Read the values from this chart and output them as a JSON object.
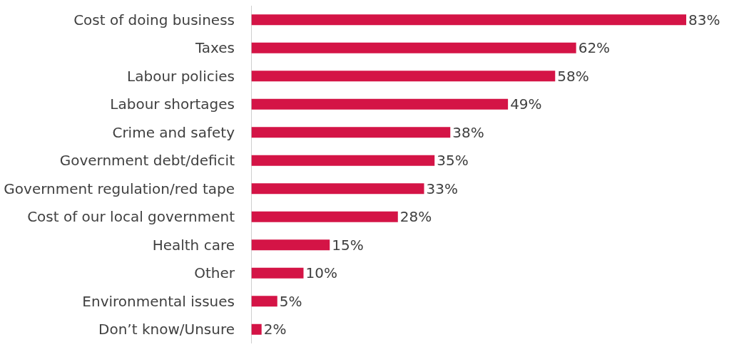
{
  "chart_data": {
    "type": "bar",
    "orientation": "horizontal",
    "categories": [
      "Cost of doing business",
      "Taxes",
      "Labour policies",
      "Labour shortages",
      "Crime and safety",
      "Government debt/deficit",
      "Government regulation/red tape",
      "Cost of our local government",
      "Health care",
      "Other",
      "Environmental issues",
      "Don’t know/Unsure"
    ],
    "values": [
      83,
      62,
      58,
      49,
      38,
      35,
      33,
      28,
      15,
      10,
      5,
      2
    ],
    "value_labels": [
      "83%",
      "62%",
      "58%",
      "49%",
      "38%",
      "35%",
      "33%",
      "28%",
      "15%",
      "10%",
      "5%",
      "2%"
    ],
    "color": "#d41446"
  }
}
